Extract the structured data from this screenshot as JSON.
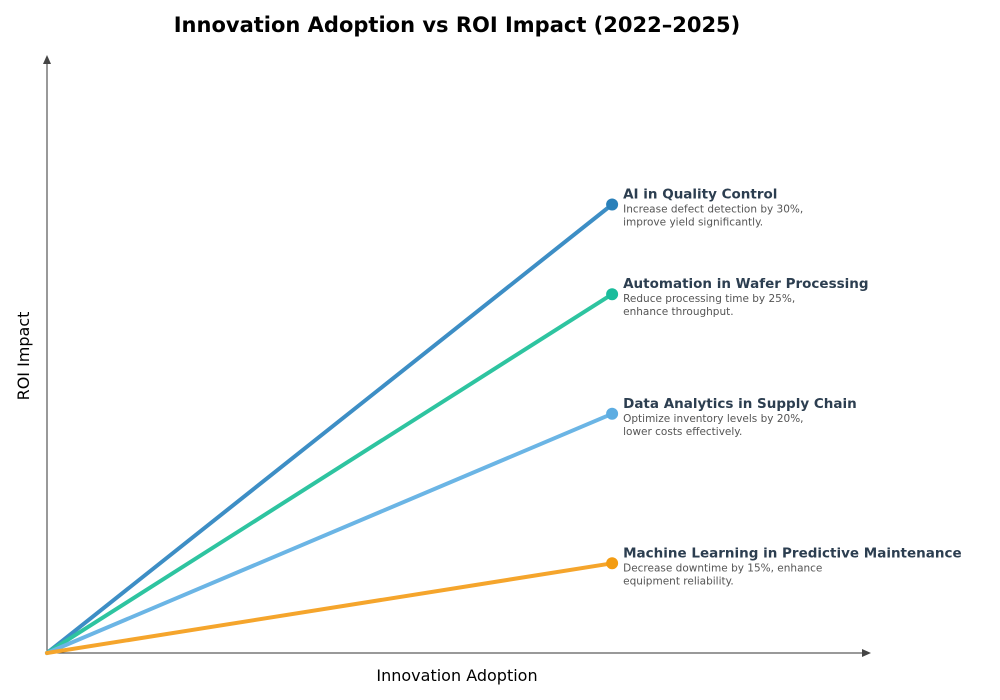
{
  "chart_data": {
    "type": "line",
    "title": "Innovation Adoption vs ROI Impact (2022–2025)",
    "xlabel": "Innovation Adoption",
    "ylabel": "ROI Impact",
    "xlim": [
      0,
      1
    ],
    "ylim": [
      0,
      1
    ],
    "grid": false,
    "legend": "none (direct labels at line ends)",
    "series": [
      {
        "name": "AI in Quality Control",
        "x": [
          0,
          0.69
        ],
        "y": [
          0,
          0.75
        ],
        "description": [
          "Increase defect detection by 30%,",
          "improve yield significantly."
        ],
        "line_color": "#3d8ec5",
        "marker_color": "#2a80b9"
      },
      {
        "name": "Automation in Wafer Processing",
        "x": [
          0,
          0.69
        ],
        "y": [
          0,
          0.6
        ],
        "description": [
          "Reduce processing time by 25%,",
          "enhance throughput."
        ],
        "line_color": "#2ec4a0",
        "marker_color": "#1abc9c"
      },
      {
        "name": "Data Analytics in Supply Chain",
        "x": [
          0,
          0.69
        ],
        "y": [
          0,
          0.4
        ],
        "description": [
          "Optimize inventory levels by 20%,",
          "lower costs effectively."
        ],
        "line_color": "#6bb5e5",
        "marker_color": "#5dade2"
      },
      {
        "name": "Machine Learning in Predictive Maintenance",
        "x": [
          0,
          0.69
        ],
        "y": [
          0,
          0.15
        ],
        "description": [
          "Decrease downtime by 15%, enhance",
          "equipment reliability."
        ],
        "line_color": "#f5a52c",
        "marker_color": "#f39c12"
      }
    ]
  }
}
